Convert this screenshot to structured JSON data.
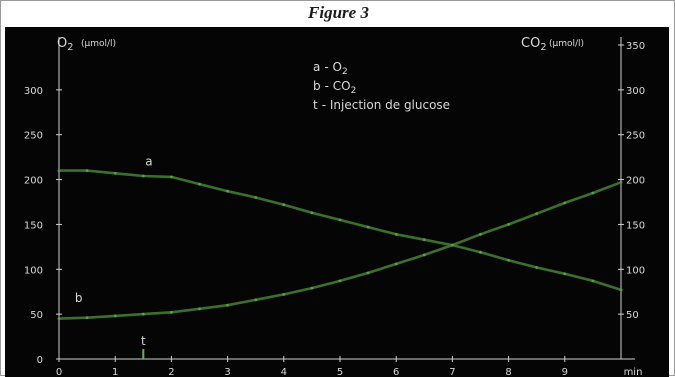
{
  "figure": {
    "title": "Figure 3"
  },
  "chart_data": {
    "type": "line",
    "x_unit_label": "min",
    "x_ticks": [
      0,
      1,
      2,
      3,
      4,
      5,
      6,
      7,
      8,
      9
    ],
    "xlim": [
      0,
      10
    ],
    "left_axis": {
      "label": "O",
      "subscript": "2",
      "unit": "(µmol/l)",
      "ticks": [
        0,
        50,
        100,
        150,
        200,
        250,
        300
      ],
      "ylim": [
        0,
        350
      ]
    },
    "right_axis": {
      "label": "CO",
      "subscript": "2",
      "unit": "(µmol/l)",
      "ticks": [
        50,
        100,
        150,
        200,
        250,
        300,
        350
      ],
      "ylim": [
        0,
        350
      ]
    },
    "legend": [
      {
        "key": "a",
        "text": "- O",
        "subscript": "2"
      },
      {
        "key": "b",
        "text": "- CO",
        "subscript": "2"
      },
      {
        "key": "t",
        "text": "- Injection de glucose",
        "subscript": ""
      }
    ],
    "series": [
      {
        "name": "a",
        "axis": "left",
        "color": "#3f7a2e",
        "x": [
          0,
          0.5,
          1,
          1.5,
          2,
          2.5,
          3,
          3.5,
          4,
          4.5,
          5,
          5.5,
          6,
          6.5,
          7,
          7.5,
          8,
          8.5,
          9,
          9.5,
          10
        ],
        "y": [
          210,
          210,
          207,
          204,
          203,
          195,
          187,
          180,
          172,
          163,
          155,
          147,
          139,
          133,
          127,
          119,
          110,
          102,
          95,
          87,
          77
        ]
      },
      {
        "name": "b",
        "axis": "right",
        "color": "#3f7a2e",
        "x": [
          0,
          0.5,
          1,
          1.5,
          2,
          2.5,
          3,
          3.5,
          4,
          4.5,
          5,
          5.5,
          6,
          6.5,
          7,
          7.5,
          8,
          8.5,
          9,
          9.5,
          10
        ],
        "y": [
          45,
          46,
          48,
          50,
          52,
          56,
          60,
          66,
          72,
          79,
          87,
          96,
          106,
          116,
          127,
          139,
          150,
          162,
          174,
          185,
          197
        ]
      }
    ],
    "annotations": [
      {
        "label": "a",
        "x": 1.6,
        "y": 210,
        "axis": "left"
      },
      {
        "label": "b",
        "x": 0.35,
        "y": 60,
        "axis": "right"
      },
      {
        "label": "t",
        "x": 1.5,
        "y": 18,
        "axis": "left",
        "marker_x": 1.5
      }
    ],
    "grid": false
  }
}
